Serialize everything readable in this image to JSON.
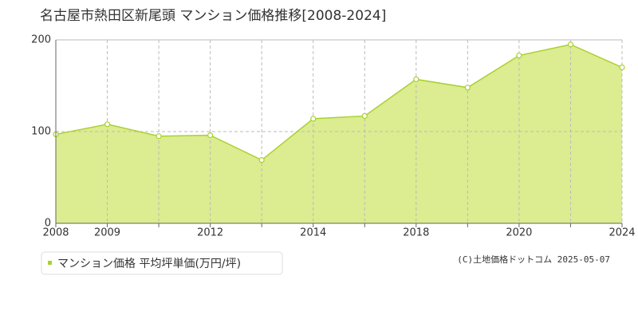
{
  "chart_data": {
    "type": "area",
    "title": "名古屋市熱田区新尾頭 マンション価格推移[2008-2024]",
    "categories": [
      "2008",
      "2009",
      null,
      "2012",
      null,
      "2014",
      null,
      "2018",
      null,
      "2020",
      null,
      "2024"
    ],
    "series": [
      {
        "name": "マンション価格 平均坪単価(万円/坪)",
        "color": "#a8d130",
        "fill": "#dcec90",
        "values": [
          97,
          108,
          95,
          96,
          69,
          114,
          117,
          157,
          148,
          183,
          195,
          170
        ]
      }
    ],
    "ylim": [
      0,
      200
    ],
    "yticks": [
      0,
      100,
      200
    ],
    "grid": true,
    "credit": "(C)土地価格ドットコム 2025-05-07"
  }
}
